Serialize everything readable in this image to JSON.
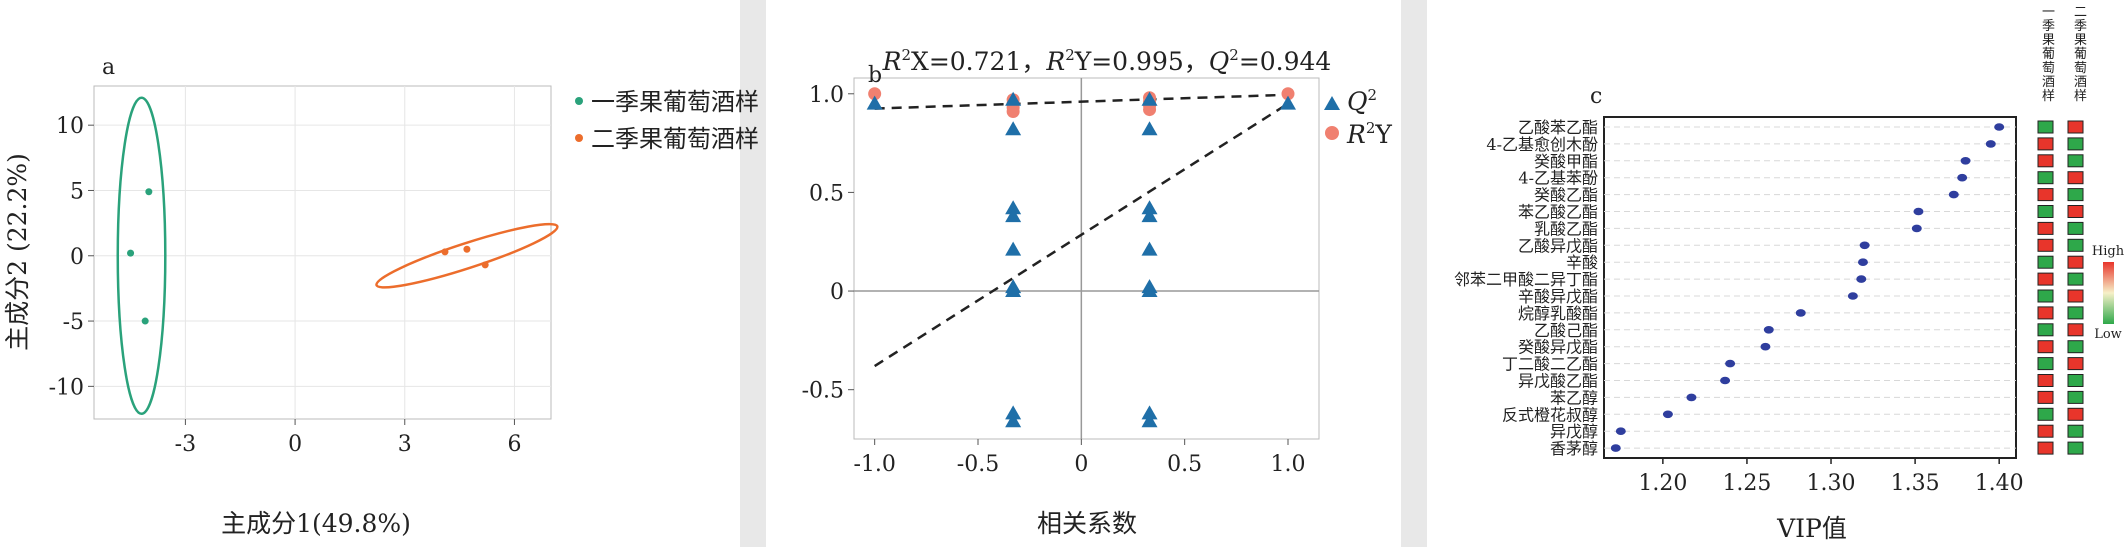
{
  "panel_a": {
    "label": "a",
    "xlabel": "主成分1(49.8%)",
    "ylabel": "主成分2 (22.2%)",
    "legend": [
      "一季果葡萄酒样",
      "二季果葡萄酒样"
    ],
    "colors": {
      "s1": "#2aa27b",
      "s2": "#ec6d2c"
    }
  },
  "panel_b": {
    "label": "b",
    "title_parts": [
      {
        "t": "R",
        "i": true
      },
      {
        "t": "2",
        "s": true
      },
      {
        "t": "X=0.721，"
      },
      {
        "t": "R",
        "i": true
      },
      {
        "t": "2",
        "s": true
      },
      {
        "t": "Y=0.995，"
      },
      {
        "t": "Q",
        "i": true
      },
      {
        "t": "2",
        "s": true
      },
      {
        "t": "=0.944"
      }
    ],
    "xlabel": "相关系数",
    "legend_q2": "Q",
    "legend_r2": "Y",
    "colors": {
      "q2": "#1f6fa8",
      "r2": "#f08070"
    }
  },
  "panel_c": {
    "label": "c",
    "xlabel": "VIP值",
    "col_headers": [
      "一季果葡萄酒样",
      "二季果葡萄酒样"
    ],
    "scale_high": "High",
    "scale_low": "Low",
    "colors": {
      "dot": "#2f3e9e",
      "high": "#e8352b",
      "low": "#2ea84a"
    }
  },
  "chart_data": [
    {
      "type": "scatter",
      "xlabel": "主成分1(49.8%)",
      "ylabel": "主成分2 (22.2%)",
      "xlim": [
        -5.5,
        7.0
      ],
      "ylim": [
        -12.5,
        13.0
      ],
      "xticks": [
        -3,
        0,
        3,
        6
      ],
      "yticks": [
        -10,
        -5,
        0,
        5,
        10
      ],
      "grid": true,
      "legend_position": "right",
      "series": [
        {
          "name": "一季果葡萄酒样",
          "points": [
            [
              -4.5,
              0.2
            ],
            [
              -4.0,
              4.9
            ],
            [
              -4.1,
              -5.0
            ]
          ],
          "ellipse": {
            "cx": -4.2,
            "cy": 0,
            "rx": 0.65,
            "ry": 12.1
          }
        },
        {
          "name": "二季果葡萄酒样",
          "points": [
            [
              4.1,
              0.3
            ],
            [
              4.7,
              0.5
            ],
            [
              5.2,
              -0.7
            ]
          ],
          "ellipse": {
            "cx": 4.7,
            "cy": 0,
            "rx": 2.6,
            "ry": 0.95,
            "angle": -18
          }
        }
      ]
    },
    {
      "type": "scatter",
      "title": "R²X=0.721，R²Y=0.995，Q²=0.944",
      "xlabel": "相关系数",
      "xlim": [
        -1.1,
        1.15
      ],
      "ylim": [
        -0.75,
        1.08
      ],
      "xticks": [
        -1.0,
        -0.5,
        0,
        0.5,
        1.0
      ],
      "yticks": [
        -0.5,
        0,
        0.5,
        1.0
      ],
      "legend_position": "top-right",
      "series": [
        {
          "name": "Q²",
          "marker": "triangle",
          "points": [
            [
              -1.0,
              0.95
            ],
            [
              -0.33,
              0.97
            ],
            [
              -0.33,
              0.82
            ],
            [
              -0.33,
              0.42
            ],
            [
              -0.33,
              0.38
            ],
            [
              -0.33,
              0.21
            ],
            [
              -0.33,
              0.02
            ],
            [
              -0.33,
              0.0
            ],
            [
              -0.33,
              -0.62
            ],
            [
              -0.33,
              -0.66
            ],
            [
              0.33,
              0.97
            ],
            [
              0.33,
              0.82
            ],
            [
              0.33,
              0.42
            ],
            [
              0.33,
              0.38
            ],
            [
              0.33,
              0.21
            ],
            [
              0.33,
              0.02
            ],
            [
              0.33,
              0.0
            ],
            [
              0.33,
              -0.62
            ],
            [
              0.33,
              -0.66
            ],
            [
              1.0,
              0.95
            ]
          ],
          "fit": [
            [
              -1.0,
              -0.38
            ],
            [
              1.0,
              0.95
            ]
          ]
        },
        {
          "name": "R²Y",
          "marker": "circle",
          "points": [
            [
              -1.0,
              1.0
            ],
            [
              -0.33,
              0.97
            ],
            [
              -0.33,
              0.95
            ],
            [
              -0.33,
              0.93
            ],
            [
              -0.33,
              0.91
            ],
            [
              0.33,
              0.98
            ],
            [
              0.33,
              0.96
            ],
            [
              0.33,
              0.94
            ],
            [
              0.33,
              0.92
            ],
            [
              1.0,
              1.0
            ]
          ],
          "fit": [
            [
              -1.0,
              0.925
            ],
            [
              1.0,
              0.995
            ]
          ]
        }
      ]
    },
    {
      "type": "scatter",
      "xlabel": "VIP值",
      "xlim": [
        1.165,
        1.41
      ],
      "xticks": [
        1.2,
        1.25,
        1.3,
        1.35,
        1.4
      ],
      "categories": [
        "乙酸苯乙酯",
        "4-乙基愈创木酚",
        "癸酸甲酯",
        "4-乙基苯酚",
        "癸酸乙酯",
        "苯乙酸乙酯",
        "乳酸乙酯",
        "乙酸异戊酯",
        "辛酸",
        "邻苯二甲酸二异丁酯",
        "辛酸异戊酯",
        "烷醇乳酸酯",
        "乙酸己酯",
        "癸酸异戊酯",
        "丁二酸二乙酯",
        "异戊酸乙酯",
        "苯乙醇",
        "反式橙花叔醇",
        "异戊醇",
        "香茅醇"
      ],
      "values": [
        1.4,
        1.395,
        1.38,
        1.378,
        1.373,
        1.352,
        1.351,
        1.32,
        1.319,
        1.318,
        1.313,
        1.282,
        1.263,
        1.261,
        1.24,
        1.237,
        1.217,
        1.203,
        1.175,
        1.172
      ],
      "heatmap": {
        "columns": [
          "一季果葡萄酒样",
          "二季果葡萄酒样"
        ],
        "levels": [
          [
            "low",
            "high"
          ],
          [
            "high",
            "low"
          ],
          [
            "high",
            "low"
          ],
          [
            "low",
            "high"
          ],
          [
            "high",
            "low"
          ],
          [
            "low",
            "high"
          ],
          [
            "high",
            "low"
          ],
          [
            "high",
            "low"
          ],
          [
            "low",
            "high"
          ],
          [
            "high",
            "low"
          ],
          [
            "low",
            "high"
          ],
          [
            "high",
            "low"
          ],
          [
            "low",
            "high"
          ],
          [
            "high",
            "low"
          ],
          [
            "low",
            "high"
          ],
          [
            "high",
            "low"
          ],
          [
            "high",
            "low"
          ],
          [
            "low",
            "high"
          ],
          [
            "high",
            "low"
          ],
          [
            "high",
            "low"
          ]
        ]
      }
    }
  ]
}
